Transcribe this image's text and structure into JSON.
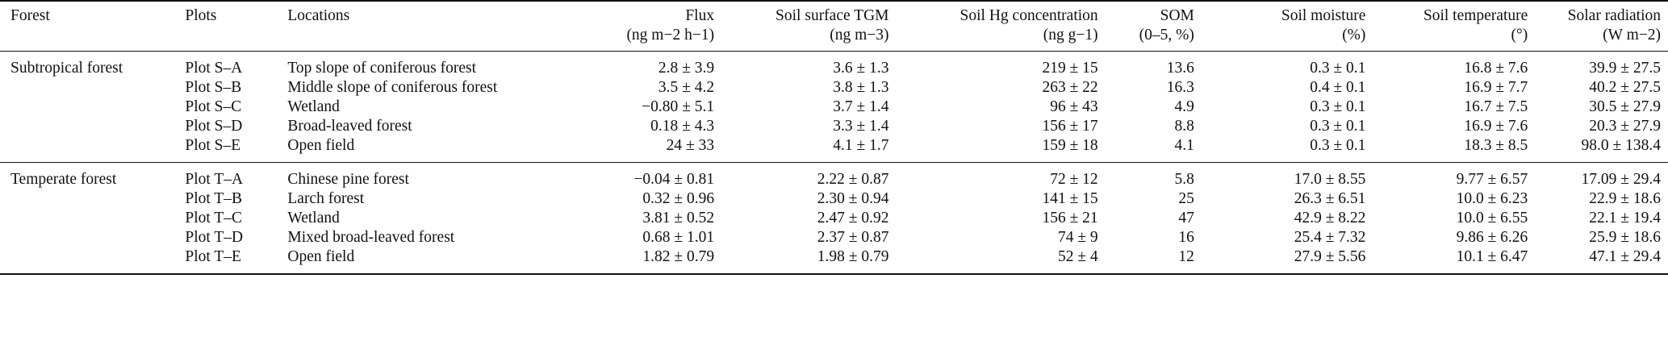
{
  "headers": {
    "forest": "Forest",
    "plots": "Plots",
    "locations": "Locations",
    "flux": "Flux",
    "flux_unit": "(ng m−2 h−1)",
    "tgm": "Soil surface TGM",
    "tgm_unit": "(ng m−3)",
    "hg": "Soil Hg concentration",
    "hg_unit": "(ng g−1)",
    "som": "SOM",
    "som_unit": "(0–5, %)",
    "moisture": "Soil moisture",
    "moisture_unit": "(%)",
    "temp": "Soil temperature",
    "temp_unit": "(°)",
    "solar": "Solar radiation",
    "solar_unit": "(W m−2)"
  },
  "groups": [
    {
      "forest": "Subtropical forest",
      "rows": [
        {
          "plot": "Plot S–A",
          "location": "Top slope of coniferous forest",
          "flux": "2.8 ± 3.9",
          "tgm": "3.6 ± 1.3",
          "hg": "219 ± 15",
          "som": "13.6",
          "moisture": "0.3 ± 0.1",
          "temp": "16.8 ± 7.6",
          "solar": "39.9 ± 27.5"
        },
        {
          "plot": "Plot S–B",
          "location": "Middle slope of coniferous forest",
          "flux": "3.5 ± 4.2",
          "tgm": "3.8 ± 1.3",
          "hg": "263 ± 22",
          "som": "16.3",
          "moisture": "0.4 ± 0.1",
          "temp": "16.9 ± 7.7",
          "solar": "40.2 ± 27.5"
        },
        {
          "plot": "Plot S–C",
          "location": "Wetland",
          "flux": "−0.80 ± 5.1",
          "tgm": "3.7 ± 1.4",
          "hg": "96 ± 43",
          "som": "4.9",
          "moisture": "0.3 ± 0.1",
          "temp": "16.7 ± 7.5",
          "solar": "30.5 ± 27.9"
        },
        {
          "plot": "Plot S–D",
          "location": "Broad-leaved forest",
          "flux": "0.18 ± 4.3",
          "tgm": "3.3 ± 1.4",
          "hg": "156 ± 17",
          "som": "8.8",
          "moisture": "0.3 ± 0.1",
          "temp": "16.9 ± 7.6",
          "solar": "20.3 ± 27.9"
        },
        {
          "plot": "Plot S–E",
          "location": "Open field",
          "flux": "24 ± 33",
          "tgm": "4.1 ± 1.7",
          "hg": "159 ± 18",
          "som": "4.1",
          "moisture": "0.3 ± 0.1",
          "temp": "18.3 ± 8.5",
          "solar": "98.0 ± 138.4"
        }
      ]
    },
    {
      "forest": "Temperate forest",
      "rows": [
        {
          "plot": "Plot T–A",
          "location": "Chinese pine forest",
          "flux": "−0.04 ± 0.81",
          "tgm": "2.22 ± 0.87",
          "hg": "72 ± 12",
          "som": "5.8",
          "moisture": "17.0 ± 8.55",
          "temp": "9.77 ± 6.57",
          "solar": "17.09 ± 29.4"
        },
        {
          "plot": "Plot T–B",
          "location": "Larch forest",
          "flux": "0.32 ± 0.96",
          "tgm": "2.30 ± 0.94",
          "hg": "141 ± 15",
          "som": "25",
          "moisture": "26.3 ± 6.51",
          "temp": "10.0 ± 6.23",
          "solar": "22.9 ± 18.6"
        },
        {
          "plot": "Plot T–C",
          "location": "Wetland",
          "flux": "3.81 ± 0.52",
          "tgm": "2.47 ± 0.92",
          "hg": "156 ± 21",
          "som": "47",
          "moisture": "42.9 ± 8.22",
          "temp": "10.0 ± 6.55",
          "solar": "22.1 ± 19.4"
        },
        {
          "plot": "Plot T–D",
          "location": "Mixed broad-leaved forest",
          "flux": "0.68 ± 1.01",
          "tgm": "2.37 ± 0.87",
          "hg": "74 ± 9",
          "som": "16",
          "moisture": "25.4 ± 7.32",
          "temp": "9.86 ± 6.26",
          "solar": "25.9 ± 18.6"
        },
        {
          "plot": "Plot T–E",
          "location": "Open field",
          "flux": "1.82 ± 0.79",
          "tgm": "1.98 ± 0.79",
          "hg": "52 ± 4",
          "som": "12",
          "moisture": "27.9 ± 5.56",
          "temp": "10.1 ± 6.47",
          "solar": "47.1 ± 29.4"
        }
      ]
    }
  ]
}
